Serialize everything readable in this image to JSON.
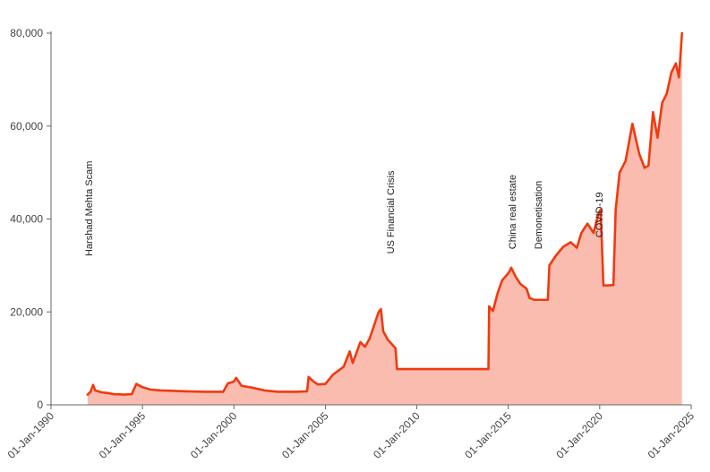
{
  "chart_data": {
    "type": "area",
    "title": "",
    "xlabel": "",
    "ylabel": "",
    "xlim": [
      "1990-01-01",
      "2025-01-01"
    ],
    "ylim": [
      0,
      80000
    ],
    "grid": false,
    "colors": {
      "line": "#f03a10",
      "fill": "#fbbcb0",
      "axis": "#666666"
    },
    "x_ticks": [
      {
        "date": "1990-01-01",
        "label": "01-Jan-1990"
      },
      {
        "date": "1995-01-01",
        "label": "01-Jan-1995"
      },
      {
        "date": "2000-01-01",
        "label": "01-Jan-2000"
      },
      {
        "date": "2005-01-01",
        "label": "01-Jan-2005"
      },
      {
        "date": "2010-01-01",
        "label": "01-Jan-2010"
      },
      {
        "date": "2015-01-01",
        "label": "01-Jan-2015"
      },
      {
        "date": "2020-01-01",
        "label": "01-Jan-2020"
      },
      {
        "date": "2025-01-01",
        "label": "01-Jan-2025"
      }
    ],
    "y_ticks": [
      {
        "value": 0,
        "label": "0"
      },
      {
        "value": 20000,
        "label": "20,000"
      },
      {
        "value": 40000,
        "label": "40,000"
      },
      {
        "value": 60000,
        "label": "60,000"
      },
      {
        "value": 80000,
        "label": "80,000"
      }
    ],
    "annotations": [
      {
        "date": "1992-04-01",
        "value": 32000,
        "label": "Harshad Mehta Scam"
      },
      {
        "date": "2008-10-01",
        "value": 32500,
        "label": "US Financial Crisis"
      },
      {
        "date": "2015-06-01",
        "value": 33500,
        "label": "China real estate"
      },
      {
        "date": "2016-11-01",
        "value": 33500,
        "label": "Demonetisation"
      },
      {
        "date": "2020-03-01",
        "value": 36000,
        "label": "COVID-19"
      }
    ],
    "series": [
      {
        "points": [
          [
            "1992-01-01",
            2200
          ],
          [
            "1992-03-01",
            2800
          ],
          [
            "1992-04-20",
            4300
          ],
          [
            "1992-06-01",
            3100
          ],
          [
            "1992-10-01",
            2700
          ],
          [
            "1993-03-01",
            2500
          ],
          [
            "1993-06-01",
            2300
          ],
          [
            "1994-01-01",
            2200
          ],
          [
            "1994-06-01",
            2300
          ],
          [
            "1994-09-01",
            4500
          ],
          [
            "1995-01-01",
            3800
          ],
          [
            "1995-06-01",
            3300
          ],
          [
            "1996-01-01",
            3100
          ],
          [
            "1997-06-01",
            2900
          ],
          [
            "1998-06-01",
            2800
          ],
          [
            "1999-06-01",
            2800
          ],
          [
            "1999-09-01",
            4600
          ],
          [
            "2000-01-01",
            5000
          ],
          [
            "2000-02-15",
            5800
          ],
          [
            "2000-06-01",
            4100
          ],
          [
            "2001-01-01",
            3700
          ],
          [
            "2001-09-01",
            3100
          ],
          [
            "2002-06-01",
            2800
          ],
          [
            "2003-06-01",
            2800
          ],
          [
            "2004-01-01",
            2900
          ],
          [
            "2004-02-01",
            6000
          ],
          [
            "2004-05-01",
            5100
          ],
          [
            "2004-08-01",
            4400
          ],
          [
            "2005-01-01",
            4500
          ],
          [
            "2005-06-01",
            6500
          ],
          [
            "2006-01-01",
            8200
          ],
          [
            "2006-05-01",
            11500
          ],
          [
            "2006-07-01",
            9000
          ],
          [
            "2006-12-01",
            13500
          ],
          [
            "2007-03-01",
            12500
          ],
          [
            "2007-06-01",
            14200
          ],
          [
            "2007-12-01",
            20000
          ],
          [
            "2008-01-15",
            20600
          ],
          [
            "2008-03-01",
            15800
          ],
          [
            "2008-06-01",
            14000
          ],
          [
            "2008-11-01",
            12200
          ],
          [
            "2008-12-01",
            7700
          ],
          [
            "2010-01-01",
            7700
          ],
          [
            "2011-06-01",
            7700
          ],
          [
            "2013-12-01",
            7700
          ],
          [
            "2013-12-15",
            21200
          ],
          [
            "2014-03-01",
            20200
          ],
          [
            "2014-06-01",
            24000
          ],
          [
            "2014-09-01",
            26800
          ],
          [
            "2015-01-15",
            28500
          ],
          [
            "2015-03-01",
            29500
          ],
          [
            "2015-06-01",
            27500
          ],
          [
            "2015-09-01",
            26000
          ],
          [
            "2016-01-01",
            25000
          ],
          [
            "2016-03-01",
            23000
          ],
          [
            "2016-06-01",
            22600
          ],
          [
            "2017-01-01",
            22600
          ],
          [
            "2017-03-01",
            22600
          ],
          [
            "2017-04-01",
            30000
          ],
          [
            "2017-08-01",
            32000
          ],
          [
            "2018-01-01",
            34000
          ],
          [
            "2018-06-01",
            35000
          ],
          [
            "2018-10-01",
            33800
          ],
          [
            "2019-01-01",
            37000
          ],
          [
            "2019-05-01",
            39000
          ],
          [
            "2019-09-01",
            37000
          ],
          [
            "2019-12-01",
            41000
          ],
          [
            "2020-01-20",
            42000
          ],
          [
            "2020-03-15",
            25700
          ],
          [
            "2020-06-01",
            25700
          ],
          [
            "2020-10-01",
            25800
          ],
          [
            "2020-11-15",
            42000
          ],
          [
            "2021-02-01",
            50000
          ],
          [
            "2021-06-01",
            52500
          ],
          [
            "2021-10-15",
            60500
          ],
          [
            "2022-03-01",
            54000
          ],
          [
            "2022-06-15",
            51000
          ],
          [
            "2022-09-01",
            51500
          ],
          [
            "2022-12-01",
            63000
          ],
          [
            "2023-03-01",
            57500
          ],
          [
            "2023-06-01",
            65000
          ],
          [
            "2023-09-01",
            67000
          ],
          [
            "2023-12-01",
            71500
          ],
          [
            "2024-03-01",
            73500
          ],
          [
            "2024-05-01",
            70500
          ],
          [
            "2024-07-01",
            80000
          ]
        ]
      }
    ]
  }
}
